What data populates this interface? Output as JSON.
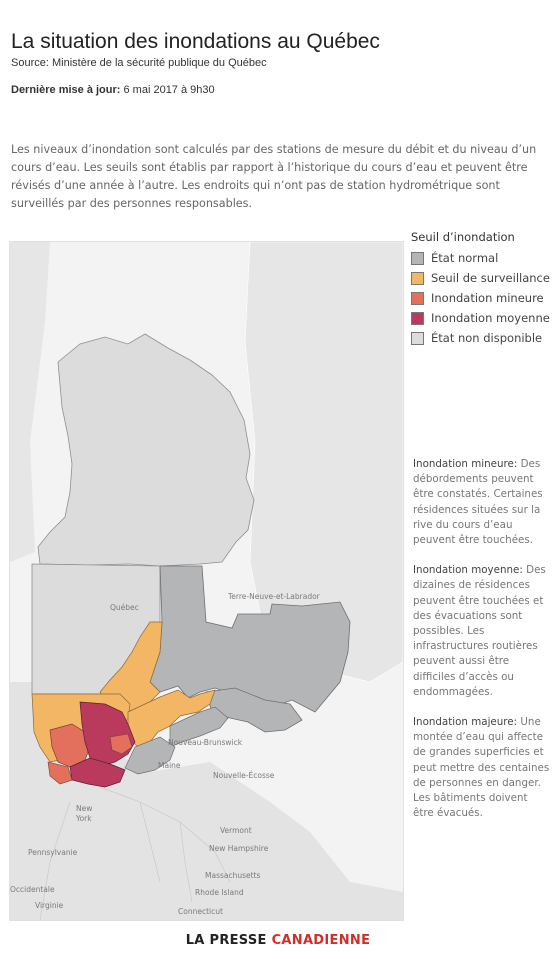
{
  "header": {
    "title": "La situation des inondations au Québec",
    "source_label": "Source:",
    "source_value": "Ministère de la sécurité publique du Québec",
    "updated_label": "Dernière mise à jour:",
    "updated_value": "6 mai 2017 à 9h30"
  },
  "intro": "Les niveaux d’inondation sont calculés par des stations de mesure du débit et du niveau d’un cours d’eau. Les seuils sont établis par rapport à l’historique du cours d’eau et peuvent être révisés d’une année à l’autre. Les endroits qui n’ont pas de station hydrométrique sont surveillés par des personnes responsables.",
  "legend": {
    "title": "Seuil d’inondation",
    "items": [
      {
        "label": "État normal",
        "color": "#b4b5b7"
      },
      {
        "label": "Seuil de surveillance",
        "color": "#f2b664"
      },
      {
        "label": "Inondation mineure",
        "color": "#e3705c"
      },
      {
        "label": "Inondation moyenne",
        "color": "#b93a5d"
      },
      {
        "label": "État non disponible",
        "color": "#dcdcdc"
      }
    ]
  },
  "notes": [
    {
      "title": "Inondation mineure:",
      "text": "Des débordements peuvent être constatés. Certaines résidences situées sur la rive du cours d’eau peuvent être touchées."
    },
    {
      "title": "Inondation moyenne:",
      "text": "Des dizaines de résidences peuvent être touchées et des évacuations sont possibles. Les infrastructures routières peuvent aussi être difficiles d’accès ou endommagées."
    },
    {
      "title": "Inondation majeure:",
      "text": "Une montée d’eau qui affecte de grandes superficies et peut mettre des centaines de personnes en danger. Les bâtiments doivent être évacués."
    }
  ],
  "map": {
    "labels": {
      "terre_neuve": "Terre-Neuve-et-Labrador",
      "quebec": "Québec",
      "nouveau_brunswick": "Nouveau-Brunswick",
      "maine": "Maine",
      "nouvelle_ecosse": "Nouvelle-Écosse",
      "new_york": "New York",
      "vermont": "Vermont",
      "new_hampshire": "New Hampshire",
      "pennsylvanie": "Pennsylvanie",
      "massachusetts": "Massachusetts",
      "rhode_island": "Rhode Island",
      "occidentale": "Occidentale",
      "virginie": "Virginie",
      "connecticut": "Connecticut"
    }
  },
  "footer": {
    "brand_a": "LA PRESSE",
    "brand_b": "CANADIENNE"
  }
}
